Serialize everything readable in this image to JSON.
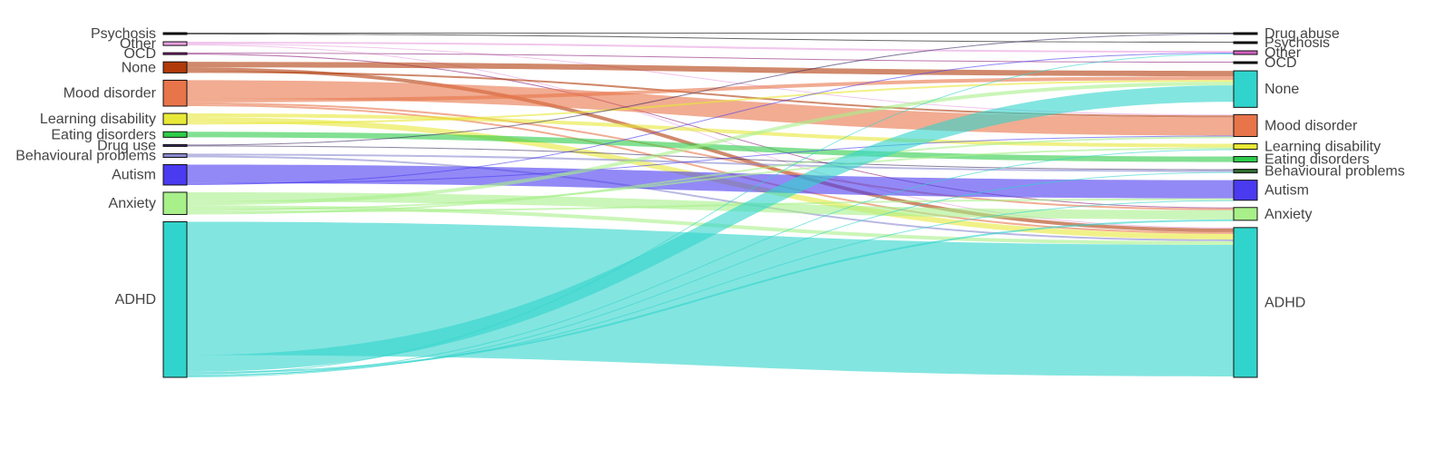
{
  "chart_data": {
    "type": "sankey",
    "title": "",
    "source_nodes": [
      {
        "name": "Psychosis",
        "color": "#000000",
        "value": 1
      },
      {
        "name": "Other",
        "color": "#e8a0e0",
        "value": 2
      },
      {
        "name": "OCD",
        "color": "#8a1a78",
        "value": 1
      },
      {
        "name": "None",
        "color": "#b03a0a",
        "value": 6
      },
      {
        "name": "Mood disorder",
        "color": "#e8744a",
        "value": 14
      },
      {
        "name": "Learning disability",
        "color": "#e8e838",
        "value": 6
      },
      {
        "name": "Eating disorders",
        "color": "#2ecc4a",
        "value": 3
      },
      {
        "name": "Drug use",
        "color": "#3a2a60",
        "value": 1
      },
      {
        "name": "Behavioural problems",
        "color": "#8a8ad0",
        "value": 2
      },
      {
        "name": "Autism",
        "color": "#4a3af0",
        "value": 11
      },
      {
        "name": "Anxiety",
        "color": "#a8f08a",
        "value": 12
      },
      {
        "name": "ADHD",
        "color": "#30d4cc",
        "value": 84
      }
    ],
    "target_nodes": [
      {
        "name": "Drug abuse",
        "color": "#000000",
        "value": 1
      },
      {
        "name": "Psychosis",
        "color": "#000000",
        "value": 1
      },
      {
        "name": "Other",
        "color": "#d060c0",
        "value": 2
      },
      {
        "name": "OCD",
        "color": "#000000",
        "value": 1
      },
      {
        "name": "None",
        "color": "#30d4cc",
        "value": 20
      },
      {
        "name": "Mood disorder",
        "color": "#e8744a",
        "value": 12
      },
      {
        "name": "Learning disability",
        "color": "#e8e838",
        "value": 3
      },
      {
        "name": "Eating disorders",
        "color": "#2ecc4a",
        "value": 3
      },
      {
        "name": "Behavioural problems",
        "color": "#2e6a2e",
        "value": 2
      },
      {
        "name": "Autism",
        "color": "#4a3af0",
        "value": 11
      },
      {
        "name": "Anxiety",
        "color": "#a8f08a",
        "value": 7
      },
      {
        "name": "ADHD",
        "color": "#30d4cc",
        "value": 82
      }
    ],
    "links": [
      {
        "source": "Psychosis",
        "target": "Drug abuse",
        "value": 0.5
      },
      {
        "source": "Psychosis",
        "target": "Psychosis",
        "value": 0.5
      },
      {
        "source": "Other",
        "target": "Other",
        "value": 1
      },
      {
        "source": "Other",
        "target": "Mood disorder",
        "value": 0.5
      },
      {
        "source": "Other",
        "target": "ADHD",
        "value": 0.5
      },
      {
        "source": "OCD",
        "target": "OCD",
        "value": 0.5
      },
      {
        "source": "OCD",
        "target": "Anxiety",
        "value": 0.5
      },
      {
        "source": "None",
        "target": "None",
        "value": 3
      },
      {
        "source": "None",
        "target": "ADHD",
        "value": 2
      },
      {
        "source": "None",
        "target": "Mood disorder",
        "value": 1
      },
      {
        "source": "Mood disorder",
        "target": "Mood disorder",
        "value": 10
      },
      {
        "source": "Mood disorder",
        "target": "None",
        "value": 2
      },
      {
        "source": "Mood disorder",
        "target": "Anxiety",
        "value": 1
      },
      {
        "source": "Mood disorder",
        "target": "ADHD",
        "value": 1
      },
      {
        "source": "Learning disability",
        "target": "Learning disability",
        "value": 2
      },
      {
        "source": "Learning disability",
        "target": "ADHD",
        "value": 3
      },
      {
        "source": "Learning disability",
        "target": "None",
        "value": 1
      },
      {
        "source": "Eating disorders",
        "target": "Eating disorders",
        "value": 3
      },
      {
        "source": "Drug use",
        "target": "Drug abuse",
        "value": 0.5
      },
      {
        "source": "Drug use",
        "target": "Behavioural problems",
        "value": 0.5
      },
      {
        "source": "Behavioural problems",
        "target": "Behavioural problems",
        "value": 1
      },
      {
        "source": "Behavioural problems",
        "target": "ADHD",
        "value": 1
      },
      {
        "source": "Autism",
        "target": "Autism",
        "value": 10
      },
      {
        "source": "Autism",
        "target": "Mood disorder",
        "value": 0.5
      },
      {
        "source": "Autism",
        "target": "Other",
        "value": 0.5
      },
      {
        "source": "Anxiety",
        "target": "Anxiety",
        "value": 5
      },
      {
        "source": "Anxiety",
        "target": "None",
        "value": 2
      },
      {
        "source": "Anxiety",
        "target": "ADHD",
        "value": 2
      },
      {
        "source": "Anxiety",
        "target": "Learning disability",
        "value": 1
      },
      {
        "source": "Anxiety",
        "target": "Autism",
        "value": 1
      },
      {
        "source": "Anxiety",
        "target": "Mood disorder",
        "value": 1
      },
      {
        "source": "ADHD",
        "target": "ADHD",
        "value": 72
      },
      {
        "source": "ADHD",
        "target": "None",
        "value": 9
      },
      {
        "source": "ADHD",
        "target": "Anxiety",
        "value": 1
      },
      {
        "source": "ADHD",
        "target": "Other",
        "value": 0.5
      },
      {
        "source": "ADHD",
        "target": "Autism",
        "value": 0.5
      },
      {
        "source": "ADHD",
        "target": "Learning disability",
        "value": 0.5
      },
      {
        "source": "ADHD",
        "target": "Behavioural problems",
        "value": 0.5
      }
    ]
  }
}
